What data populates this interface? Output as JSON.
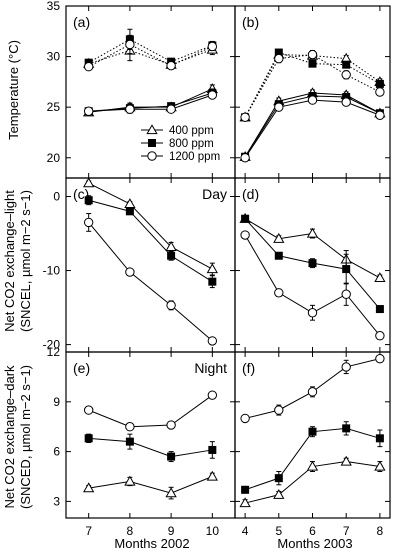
{
  "chart_data": [
    {
      "id": "a",
      "type": "line",
      "panel_label": "(a)",
      "xlabel": "",
      "ylabel": "Temperature (°C)",
      "x": [
        7,
        8,
        9,
        10
      ],
      "ylim": [
        18,
        35
      ],
      "x_ticks": [
        7,
        8,
        9,
        10
      ],
      "y_ticks": [
        20,
        25,
        30,
        35
      ],
      "series": [
        {
          "name": "400 ppm",
          "marker": "triangle",
          "line": "dotted",
          "group": "day",
          "values": [
            29.3,
            30.6,
            29.2,
            30.7
          ],
          "errors": [
            0.2,
            1.0,
            0.4,
            0.5
          ]
        },
        {
          "name": "800 ppm",
          "marker": "square",
          "line": "dotted",
          "group": "day",
          "values": [
            29.4,
            31.7,
            29.5,
            31.1
          ],
          "errors": [
            0.2,
            1.0,
            0.3,
            0.4
          ]
        },
        {
          "name": "1200 ppm",
          "marker": "circle",
          "line": "dotted",
          "group": "day",
          "values": [
            29.0,
            31.2,
            29.1,
            31.0
          ],
          "errors": [
            0.2,
            0.9,
            0.3,
            0.4
          ]
        },
        {
          "name": "400 ppm",
          "marker": "triangle",
          "line": "solid",
          "group": "night",
          "values": [
            24.5,
            25.0,
            25.0,
            26.8
          ],
          "errors": [
            0.2,
            0.4,
            0.2,
            0.4
          ]
        },
        {
          "name": "800 ppm",
          "marker": "square",
          "line": "solid",
          "group": "night",
          "values": [
            24.6,
            24.9,
            25.1,
            26.4
          ],
          "errors": [
            0.2,
            0.4,
            0.2,
            0.4
          ]
        },
        {
          "name": "1200 ppm",
          "marker": "circle",
          "line": "solid",
          "group": "night",
          "values": [
            24.6,
            24.8,
            24.8,
            26.2
          ],
          "errors": [
            0.2,
            0.4,
            0.2,
            0.3
          ]
        }
      ],
      "legend": {
        "entries": [
          "400 ppm",
          "800 ppm",
          "1200 ppm"
        ],
        "placement": "lower-right"
      }
    },
    {
      "id": "b",
      "type": "line",
      "panel_label": "(b)",
      "xlabel": "",
      "ylabel": "",
      "x": [
        4,
        5,
        6,
        7,
        8
      ],
      "ylim": [
        18,
        35
      ],
      "x_ticks": [
        4,
        5,
        6,
        7,
        8
      ],
      "y_ticks": [
        20,
        25,
        30,
        35
      ],
      "series": [
        {
          "name": "400 ppm",
          "marker": "triangle",
          "line": "dotted",
          "group": "day",
          "values": [
            24.0,
            30.2,
            30.1,
            29.8,
            27.5
          ],
          "errors": [
            0.2,
            0.3,
            0.3,
            0.3,
            0.3
          ]
        },
        {
          "name": "800 ppm",
          "marker": "square",
          "line": "dotted",
          "group": "day",
          "values": [
            24.0,
            30.4,
            29.3,
            29.2,
            27.3
          ],
          "errors": [
            0.2,
            0.3,
            0.3,
            0.3,
            0.3
          ]
        },
        {
          "name": "1200 ppm",
          "marker": "circle",
          "line": "dotted",
          "group": "day",
          "values": [
            24.0,
            29.8,
            30.2,
            28.2,
            26.5
          ],
          "errors": [
            0.2,
            0.4,
            0.4,
            0.4,
            0.3
          ]
        },
        {
          "name": "400 ppm",
          "marker": "triangle",
          "line": "solid",
          "group": "night",
          "values": [
            20.1,
            25.6,
            26.4,
            26.2,
            24.4
          ],
          "errors": [
            0.2,
            0.3,
            0.3,
            0.3,
            0.2
          ]
        },
        {
          "name": "800 ppm",
          "marker": "square",
          "line": "solid",
          "group": "night",
          "values": [
            20.1,
            25.3,
            26.1,
            26.0,
            24.4
          ],
          "errors": [
            0.2,
            0.3,
            0.3,
            0.3,
            0.2
          ]
        },
        {
          "name": "1200 ppm",
          "marker": "circle",
          "line": "solid",
          "group": "night",
          "values": [
            20.0,
            25.0,
            25.7,
            25.5,
            24.2
          ],
          "errors": [
            0.2,
            0.3,
            0.3,
            0.3,
            0.2
          ]
        }
      ]
    },
    {
      "id": "c",
      "type": "line",
      "panel_label": "(c)",
      "annotation": "Day",
      "xlabel": "",
      "ylabel_line1": "Net CO2 exchange–light",
      "ylabel_line2": "(SNCEL, µmol m−2 s−1)",
      "x": [
        7,
        8,
        9,
        10
      ],
      "ylim": [
        -21,
        2.5
      ],
      "x_ticks": [
        7,
        8,
        9,
        10
      ],
      "y_ticks": [
        0,
        -10,
        -20
      ],
      "series": [
        {
          "name": "400 ppm",
          "marker": "triangle",
          "line": "solid",
          "values": [
            1.8,
            -1.0,
            -6.8,
            -9.8
          ],
          "errors": [
            0.3,
            0.3,
            0.6,
            0.8
          ]
        },
        {
          "name": "800 ppm",
          "marker": "square",
          "line": "solid",
          "values": [
            -0.5,
            -2.0,
            -8.0,
            -11.5
          ],
          "errors": [
            0.6,
            0.4,
            0.6,
            0.8
          ]
        },
        {
          "name": "1200 ppm",
          "marker": "circle",
          "line": "solid",
          "values": [
            -3.5,
            -10.2,
            -14.7,
            -19.5
          ],
          "errors": [
            1.2,
            0.3,
            0.6,
            0.3
          ]
        }
      ]
    },
    {
      "id": "d",
      "type": "line",
      "panel_label": "(d)",
      "xlabel": "",
      "ylabel": "",
      "x": [
        4,
        5,
        6,
        7,
        8
      ],
      "ylim": [
        -21,
        2.5
      ],
      "x_ticks": [
        4,
        5,
        6,
        7,
        8
      ],
      "y_ticks": [
        0,
        -10,
        -20
      ],
      "series": [
        {
          "name": "400 ppm",
          "marker": "triangle",
          "line": "solid",
          "values": [
            -3.0,
            -5.7,
            -5.0,
            -8.5,
            -11.0
          ],
          "errors": [
            0.3,
            0.4,
            0.6,
            1.2,
            0.4
          ]
        },
        {
          "name": "800 ppm",
          "marker": "square",
          "line": "solid",
          "values": [
            -3.0,
            -8.0,
            -9.0,
            -9.8,
            -15.2
          ],
          "errors": [
            0.3,
            0.4,
            0.6,
            2.0,
            0.4
          ]
        },
        {
          "name": "1200 ppm",
          "marker": "circle",
          "line": "solid",
          "values": [
            -5.2,
            -13.0,
            -15.7,
            -13.2,
            -18.8
          ],
          "errors": [
            0.3,
            0.5,
            1.0,
            1.5,
            0.5
          ]
        }
      ]
    },
    {
      "id": "e",
      "type": "line",
      "panel_label": "(e)",
      "annotation": "Night",
      "xlabel": "Months 2002",
      "ylabel_line1": "Net CO2 exchange–dark",
      "ylabel_line2": "(SNCED, µmol m−2 s−1)",
      "x": [
        7,
        8,
        9,
        10
      ],
      "ylim": [
        2,
        12
      ],
      "x_ticks": [
        7,
        8,
        9,
        10
      ],
      "y_ticks": [
        3,
        6,
        9,
        12
      ],
      "series": [
        {
          "name": "400 ppm",
          "marker": "triangle",
          "line": "solid",
          "values": [
            3.8,
            4.2,
            3.5,
            4.5
          ],
          "errors": [
            0.15,
            0.25,
            0.35,
            0.2
          ]
        },
        {
          "name": "800 ppm",
          "marker": "square",
          "line": "solid",
          "values": [
            6.8,
            6.6,
            5.7,
            6.1
          ],
          "errors": [
            0.25,
            0.45,
            0.3,
            0.5
          ]
        },
        {
          "name": "1200 ppm",
          "marker": "circle",
          "line": "solid",
          "values": [
            8.5,
            7.5,
            7.6,
            9.4
          ],
          "errors": [
            0.15,
            0.15,
            0.15,
            0.15
          ]
        }
      ]
    },
    {
      "id": "f",
      "type": "line",
      "panel_label": "(f)",
      "xlabel": "Months 2003",
      "ylabel": "",
      "x": [
        4,
        5,
        6,
        7,
        8
      ],
      "ylim": [
        2,
        12
      ],
      "x_ticks": [
        4,
        5,
        6,
        7,
        8
      ],
      "y_ticks": [
        3,
        6,
        9,
        12
      ],
      "series": [
        {
          "name": "400 ppm",
          "marker": "triangle",
          "line": "solid",
          "values": [
            2.9,
            3.4,
            5.1,
            5.4,
            5.1
          ],
          "errors": [
            0.2,
            0.2,
            0.3,
            0.2,
            0.3
          ]
        },
        {
          "name": "800 ppm",
          "marker": "square",
          "line": "solid",
          "values": [
            3.7,
            4.4,
            7.2,
            7.4,
            6.8
          ],
          "errors": [
            0.2,
            0.4,
            0.3,
            0.4,
            0.5
          ]
        },
        {
          "name": "1200 ppm",
          "marker": "circle",
          "line": "solid",
          "values": [
            8.0,
            8.5,
            9.6,
            11.1,
            11.6
          ],
          "errors": [
            0.15,
            0.3,
            0.3,
            0.4,
            0.15
          ]
        }
      ]
    }
  ]
}
